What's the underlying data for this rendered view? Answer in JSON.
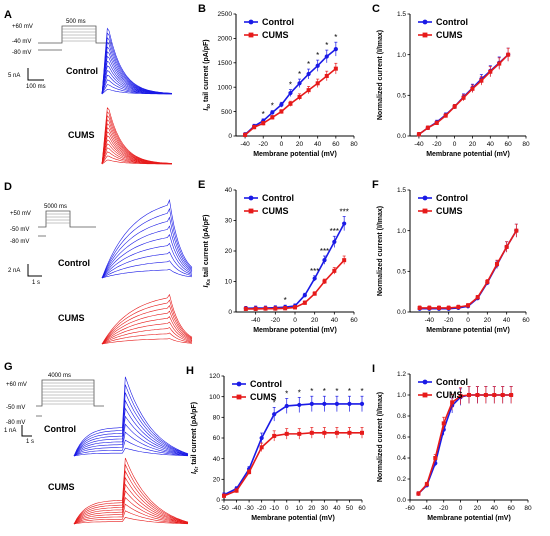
{
  "colors": {
    "control": "#1a1ae6",
    "cums": "#e61a1a",
    "axis": "#000000"
  },
  "panels": [
    {
      "letter": "A",
      "protocol": {
        "top": "+60 mV",
        "mid": "-40 mV",
        "bottom": "-80 mV",
        "duration": "500 ms"
      },
      "scale": {
        "y": "5 nA",
        "x": "100 ms"
      },
      "labels": {
        "control": "Control",
        "cums": "CUMS"
      }
    },
    {
      "letter": "D",
      "protocol": {
        "top": "+50 mV",
        "mid": "-50 mV",
        "bottom": "-80 mV",
        "duration": "5000 ms"
      },
      "scale": {
        "y": "2 nA",
        "x": "1 s"
      },
      "labels": {
        "control": "Control",
        "cums": "CUMS"
      }
    },
    {
      "letter": "G",
      "protocol": {
        "top": "+60 mV",
        "mid": "-50 mV",
        "bottom": "-80 mV",
        "duration": "4000 ms"
      },
      "scale": {
        "y": "1 nA",
        "x": "1 s"
      },
      "labels": {
        "control": "Control",
        "cums": "CUMS"
      }
    }
  ],
  "chart_data": [
    {
      "panel": "B",
      "type": "line",
      "ylabel": "I_to tail current (pA/pF)",
      "ylabel_main": "I",
      "ylabel_sub": "to",
      "ylabel_rest": " tail current (pA/pF)",
      "xlabel": "Membrane potential (mV)",
      "xlim": [
        -50,
        80
      ],
      "ylim": [
        0,
        2500
      ],
      "xticks": [
        -40,
        -20,
        0,
        20,
        40,
        60,
        80
      ],
      "yticks": [
        0,
        500,
        1000,
        1500,
        2000,
        2500
      ],
      "legend": [
        "Control",
        "CUMS"
      ],
      "x": [
        -40,
        -30,
        -20,
        -10,
        0,
        10,
        20,
        30,
        40,
        50,
        60
      ],
      "series": [
        {
          "name": "Control",
          "values": [
            30,
            200,
            310,
            480,
            640,
            880,
            1080,
            1270,
            1440,
            1630,
            1780
          ]
        },
        {
          "name": "CUMS",
          "values": [
            20,
            180,
            260,
            380,
            500,
            660,
            800,
            940,
            1080,
            1230,
            1380
          ]
        }
      ],
      "significance": [
        "",
        "",
        "*",
        "*",
        "",
        "*",
        "*",
        "*",
        "*",
        "*",
        "*"
      ]
    },
    {
      "panel": "C",
      "type": "line",
      "ylabel": "Normalized current (I/Imax)",
      "xlabel": "Membrane potential (mV)",
      "xlim": [
        -50,
        80
      ],
      "ylim": [
        0,
        1.5
      ],
      "xticks": [
        -40,
        -20,
        0,
        20,
        40,
        60,
        80
      ],
      "yticks": [
        0.0,
        0.5,
        1.0,
        1.5
      ],
      "legend": [
        "Control",
        "CUMS"
      ],
      "x": [
        -40,
        -30,
        -20,
        -10,
        0,
        10,
        20,
        30,
        40,
        50,
        60
      ],
      "series": [
        {
          "name": "Control",
          "values": [
            0.02,
            0.1,
            0.17,
            0.26,
            0.36,
            0.48,
            0.59,
            0.7,
            0.8,
            0.9,
            1.0
          ]
        },
        {
          "name": "CUMS",
          "values": [
            0.02,
            0.1,
            0.16,
            0.25,
            0.36,
            0.47,
            0.58,
            0.68,
            0.79,
            0.89,
            1.0
          ]
        }
      ]
    },
    {
      "panel": "E",
      "type": "line",
      "ylabel": "I_Ks tail current (pA/pF)",
      "ylabel_main": "I",
      "ylabel_sub": "Ks",
      "ylabel_rest": " tail current (pA/pF)",
      "xlabel": "Membrane potential (mV)",
      "xlim": [
        -60,
        60
      ],
      "ylim": [
        0,
        40
      ],
      "xticks": [
        -40,
        -20,
        0,
        20,
        40,
        60
      ],
      "yticks": [
        0,
        10,
        20,
        30,
        40
      ],
      "legend": [
        "Control",
        "CUMS"
      ],
      "x": [
        -50,
        -40,
        -30,
        -20,
        -10,
        0,
        10,
        20,
        30,
        40,
        50
      ],
      "series": [
        {
          "name": "Control",
          "values": [
            1.2,
            1.3,
            1.3,
            1.4,
            1.6,
            2.0,
            5.5,
            11,
            17,
            23,
            29
          ]
        },
        {
          "name": "CUMS",
          "values": [
            1.0,
            1.0,
            1.1,
            1.1,
            1.2,
            1.5,
            3.0,
            6.0,
            10,
            13.5,
            17
          ]
        }
      ],
      "significance": [
        "",
        "",
        "",
        "",
        "*",
        "",
        "",
        "***",
        "***",
        "***",
        "***"
      ]
    },
    {
      "panel": "F",
      "type": "line",
      "ylabel": "Normalized current (I/Imax)",
      "xlabel": "Membrane potential (mV)",
      "xlim": [
        -60,
        60
      ],
      "ylim": [
        0,
        1.5
      ],
      "xticks": [
        -40,
        -20,
        0,
        20,
        40,
        60
      ],
      "yticks": [
        0.0,
        0.5,
        1.0,
        1.5
      ],
      "legend": [
        "Control",
        "CUMS"
      ],
      "x": [
        -50,
        -40,
        -30,
        -20,
        -10,
        0,
        10,
        20,
        30,
        40,
        50
      ],
      "series": [
        {
          "name": "Control",
          "values": [
            0.04,
            0.04,
            0.04,
            0.04,
            0.05,
            0.07,
            0.17,
            0.36,
            0.58,
            0.8,
            1.0
          ]
        },
        {
          "name": "CUMS",
          "values": [
            0.05,
            0.05,
            0.05,
            0.05,
            0.06,
            0.08,
            0.18,
            0.37,
            0.59,
            0.8,
            1.0
          ]
        }
      ]
    },
    {
      "panel": "H",
      "type": "line",
      "ylabel": "I_Kr tail current (pA/pF)",
      "ylabel_main": "I",
      "ylabel_sub": "Kr",
      "ylabel_rest": " tail current (pA/pF)",
      "xlabel": "Membrane potential (mV)",
      "xlim": [
        -50,
        60
      ],
      "ylim": [
        0,
        120
      ],
      "xticks": [
        -50,
        -40,
        -30,
        -20,
        -10,
        0,
        10,
        20,
        30,
        40,
        50,
        60
      ],
      "yticks": [
        0,
        20,
        40,
        60,
        80,
        100,
        120
      ],
      "legend": [
        "Control",
        "CUMS"
      ],
      "x": [
        -50,
        -40,
        -30,
        -20,
        -10,
        0,
        10,
        20,
        30,
        40,
        50,
        60
      ],
      "series": [
        {
          "name": "Control",
          "values": [
            5,
            11,
            30,
            60,
            83,
            91,
            92,
            93,
            93,
            93,
            93,
            93
          ]
        },
        {
          "name": "CUMS",
          "values": [
            4,
            9,
            27,
            51,
            62,
            64,
            64,
            65,
            65,
            65,
            65,
            65
          ]
        }
      ],
      "significance": [
        "",
        "",
        "",
        "",
        "*",
        "*",
        "*",
        "*",
        "*",
        "*",
        "*",
        "*"
      ]
    },
    {
      "panel": "I",
      "type": "line",
      "ylabel": "Normalized current (I/Imax)",
      "xlabel": "Membrane potential (mV)",
      "xlim": [
        -60,
        80
      ],
      "ylim": [
        0.0,
        1.2
      ],
      "xticks": [
        -60,
        -40,
        -20,
        0,
        20,
        40,
        60,
        80
      ],
      "yticks": [
        0.0,
        0.2,
        0.4,
        0.6,
        0.8,
        1.0,
        1.2
      ],
      "legend": [
        "Control",
        "CUMS"
      ],
      "x": [
        -50,
        -40,
        -30,
        -20,
        -10,
        0,
        10,
        20,
        30,
        40,
        50,
        60
      ],
      "series": [
        {
          "name": "Control",
          "values": [
            0.06,
            0.14,
            0.35,
            0.67,
            0.9,
            0.98,
            1.0,
            1.0,
            1.0,
            1.0,
            1.0,
            1.0
          ]
        },
        {
          "name": "CUMS",
          "values": [
            0.06,
            0.15,
            0.4,
            0.73,
            0.93,
            0.99,
            1.0,
            1.0,
            1.0,
            1.0,
            1.0,
            1.0
          ]
        }
      ]
    }
  ]
}
